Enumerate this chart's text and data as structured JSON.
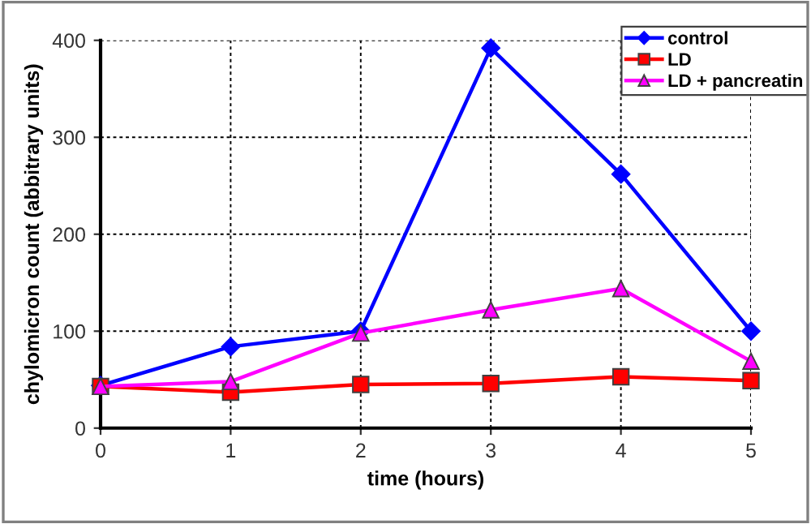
{
  "chart_data": {
    "type": "line",
    "xlabel": "time (hours)",
    "ylabel": "chylomicron count (abbitrary units)",
    "x": [
      0,
      1,
      2,
      3,
      4,
      5
    ],
    "series": [
      {
        "name": "control",
        "color": "#0000ff",
        "marker": "diamond",
        "values": [
          44,
          84,
          100,
          392,
          262,
          100
        ]
      },
      {
        "name": "LD",
        "color": "#ff0000",
        "marker": "square",
        "values": [
          43,
          37,
          45,
          46,
          53,
          49
        ]
      },
      {
        "name": "LD + pancreatin",
        "color": "#ff00ff",
        "marker": "triangle",
        "values": [
          43,
          48,
          98,
          122,
          144,
          69
        ]
      }
    ],
    "xlim": [
      0,
      5
    ],
    "xticks": [
      0,
      1,
      2,
      3,
      4,
      5
    ],
    "ylim": [
      0,
      400
    ],
    "yticks": [
      0,
      100,
      200,
      300,
      400
    ],
    "grid": true,
    "legend": "top right",
    "line_style": "solid"
  }
}
